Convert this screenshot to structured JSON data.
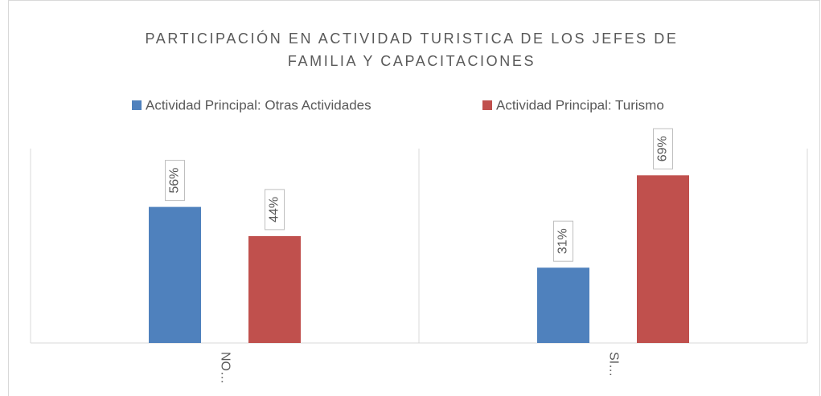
{
  "chart_data": {
    "type": "bar",
    "title": [
      "PARTICIPACIÓN EN ACTIVIDAD TURISTICA DE LOS JEFES DE",
      "FAMILIA Y CAPACITACIONES"
    ],
    "categories": [
      "NO…",
      "SI…"
    ],
    "series": [
      {
        "name": "Actividad Principal: Otras Actividades",
        "color": "#4f81bd",
        "values": [
          56,
          31
        ],
        "value_labels": [
          "56%",
          "31%"
        ]
      },
      {
        "name": "Actividad Principal: Turismo",
        "color": "#c0504d",
        "values": [
          44,
          69
        ],
        "value_labels": [
          "44%",
          "69%"
        ]
      }
    ],
    "ylim": [
      0,
      80
    ],
    "legend": "top"
  }
}
